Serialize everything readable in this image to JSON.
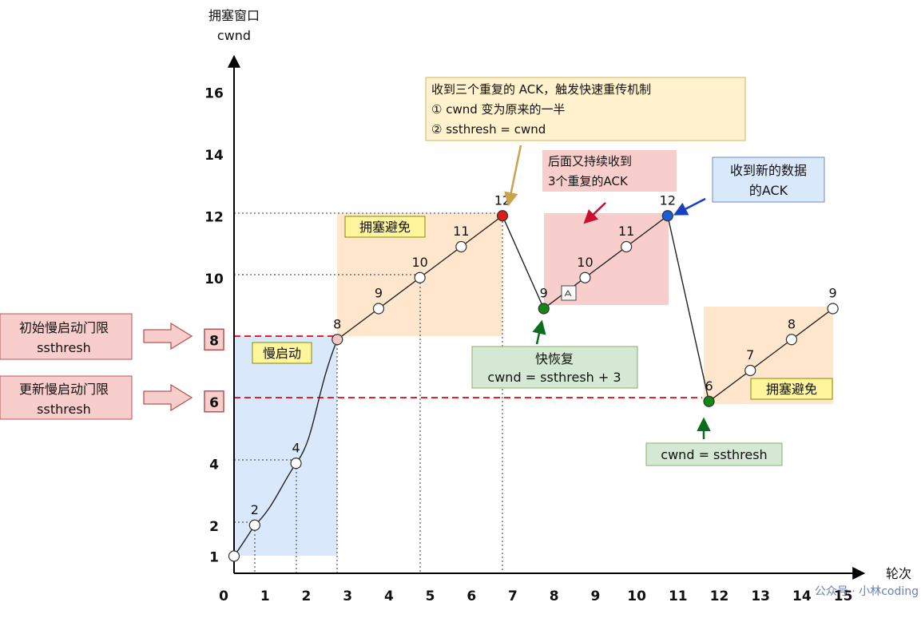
{
  "axes": {
    "y_title_line1": "拥塞窗口",
    "y_title_line2": "cwnd",
    "x_title": "轮次"
  },
  "chart_data": {
    "type": "line",
    "x_ticks": [
      "0",
      "1",
      "2",
      "3",
      "4",
      "5",
      "6",
      "7",
      "8",
      "9",
      "10",
      "11",
      "12",
      "13",
      "14",
      "15"
    ],
    "y_ticks": [
      {
        "v": 1,
        "label": "1"
      },
      {
        "v": 2,
        "label": "2"
      },
      {
        "v": 4,
        "label": "4"
      },
      {
        "v": 6,
        "label": "6",
        "boxed": true
      },
      {
        "v": 8,
        "label": "8",
        "boxed": true
      },
      {
        "v": 10,
        "label": "10"
      },
      {
        "v": 12,
        "label": "12"
      },
      {
        "v": 14,
        "label": "14"
      },
      {
        "v": 16,
        "label": "16"
      }
    ],
    "points": [
      {
        "x": 0,
        "y": 1,
        "label": "",
        "fill": "#ffffff"
      },
      {
        "x": 0.5,
        "y": 2,
        "label": "2",
        "fill": "#ffffff"
      },
      {
        "x": 1.5,
        "y": 4,
        "label": "4",
        "fill": "#ffffff"
      },
      {
        "x": 2.5,
        "y": 8,
        "label": "8",
        "fill": "#f7c7c7"
      },
      {
        "x": 3.5,
        "y": 9,
        "label": "9",
        "fill": "#ffffff"
      },
      {
        "x": 4.5,
        "y": 10,
        "label": "10",
        "fill": "#ffffff"
      },
      {
        "x": 5.5,
        "y": 11,
        "label": "11",
        "fill": "#ffffff"
      },
      {
        "x": 6.5,
        "y": 12,
        "label": "12",
        "fill": "#dd1c1c"
      },
      {
        "x": 7.5,
        "y": 9,
        "label": "9",
        "fill": "#118811"
      },
      {
        "x": 8.5,
        "y": 10,
        "label": "10",
        "fill": "#ffffff"
      },
      {
        "x": 9.5,
        "y": 11,
        "label": "11",
        "fill": "#ffffff"
      },
      {
        "x": 10.5,
        "y": 12,
        "label": "12",
        "fill": "#1b5fd6"
      },
      {
        "x": 11.5,
        "y": 6,
        "label": "6",
        "fill": "#118811"
      },
      {
        "x": 12.5,
        "y": 7,
        "label": "7",
        "fill": "#ffffff"
      },
      {
        "x": 13.5,
        "y": 8,
        "label": "8",
        "fill": "#ffffff"
      },
      {
        "x": 14.5,
        "y": 9,
        "label": "9",
        "fill": "#ffffff"
      }
    ]
  },
  "phases": {
    "slow_start": "慢启动",
    "congestion_avoidance": "拥塞避免",
    "congestion_avoidance_2": "拥塞避免"
  },
  "notes": {
    "initial_ssthresh_line1": "初始慢启动门限",
    "initial_ssthresh_line2": "ssthresh",
    "updated_ssthresh_line1": "更新慢启动门限",
    "updated_ssthresh_line2": "ssthresh",
    "triple_ack_line1": "收到三个重复的 ACK，触发快速重传机制",
    "triple_ack_line2": "① cwnd 变为原来的一半",
    "triple_ack_line3": "② ssthresh = cwnd",
    "continued_line1": "后面又持续收到",
    "continued_line2": "3个重复的ACK",
    "new_data_line1": "收到新的数据",
    "new_data_line2": "的ACK",
    "fast_recovery_line1": "快恢复",
    "fast_recovery_line2": "cwnd = ssthresh + 3",
    "cwnd_reset": "cwnd = ssthresh"
  },
  "watermark": "公众号 · 小林coding",
  "colors": {
    "slow_start_bg": "#dae8fc",
    "avoidance_bg": "#ffe6cc",
    "dup_ack_bg": "#f8cecc",
    "yellow_box": "#fff2cc",
    "label_yellow": "#fff59d",
    "green_box": "#d5e8d4",
    "blue_box": "#dae8fc",
    "threshold_line": "#e8202a"
  }
}
